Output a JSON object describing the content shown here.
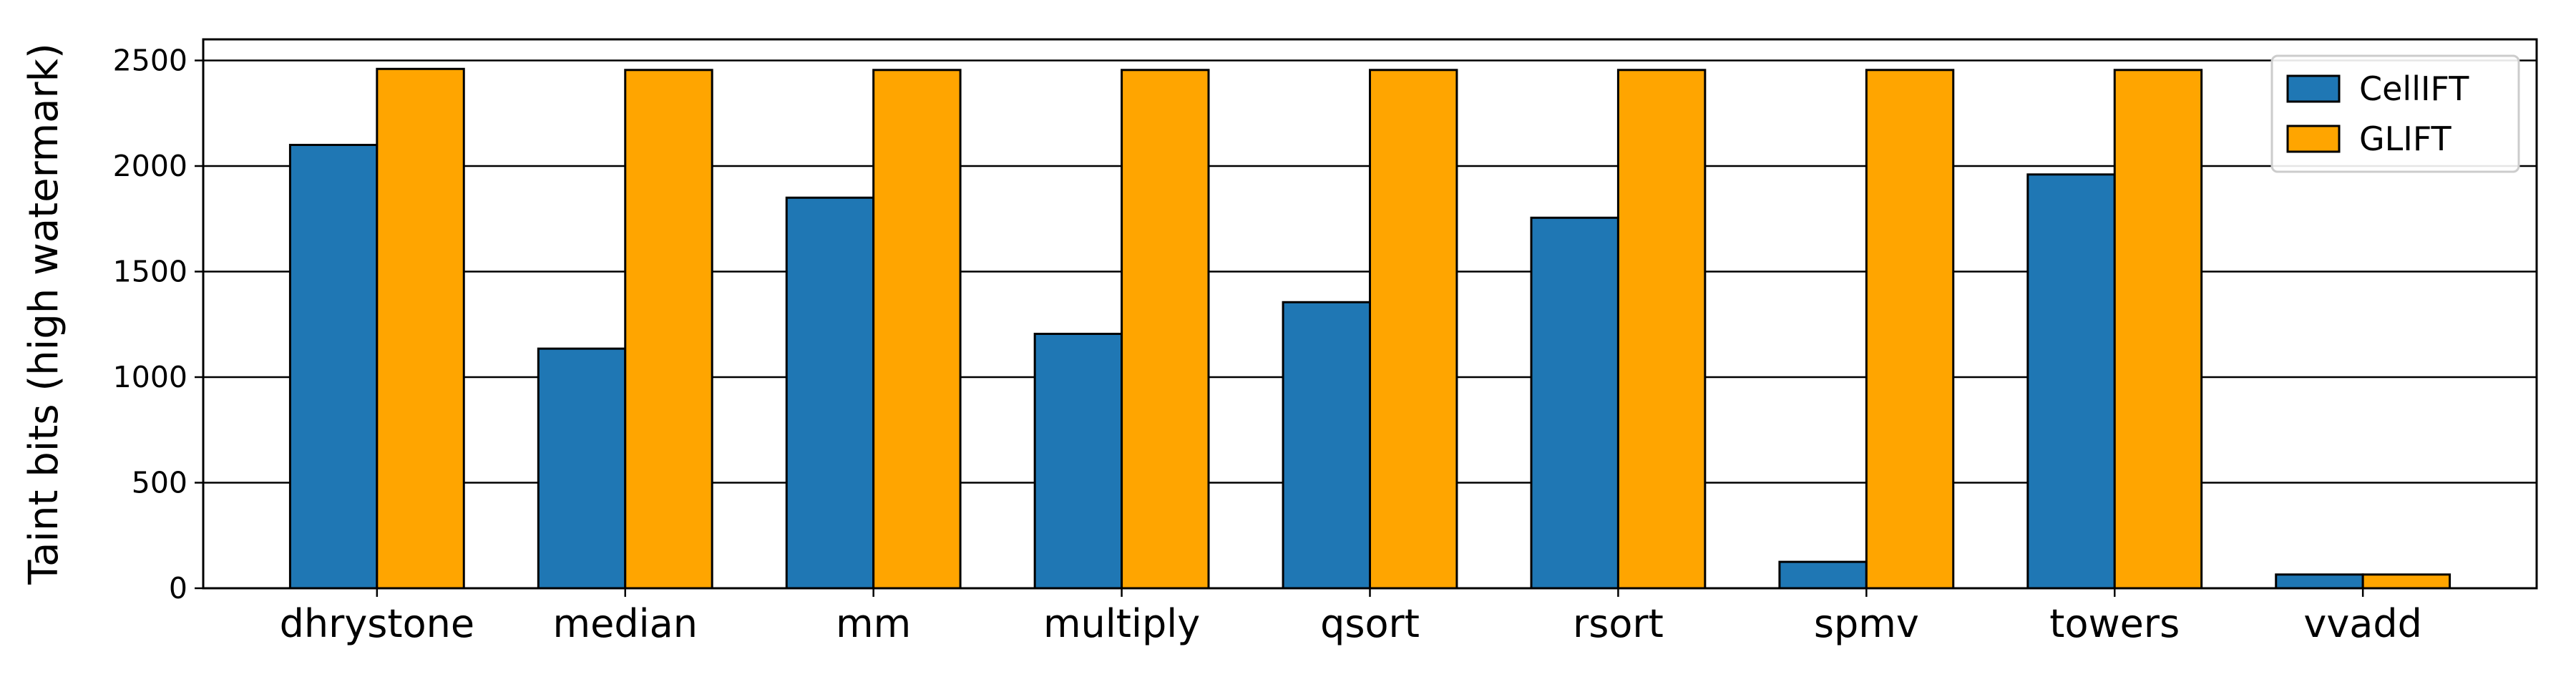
{
  "chart_data": {
    "type": "bar",
    "title": "",
    "xlabel": "",
    "ylabel": "Taint bits (high watermark)",
    "categories": [
      "dhrystone",
      "median",
      "mm",
      "multiply",
      "qsort",
      "rsort",
      "spmv",
      "towers",
      "vvadd"
    ],
    "series": [
      {
        "name": "CellIFT",
        "color": "#1f77b4",
        "values": [
          2100,
          1135,
          1850,
          1205,
          1355,
          1755,
          125,
          1960,
          65
        ]
      },
      {
        "name": "GLIFT",
        "color": "#ffa500",
        "values": [
          2460,
          2455,
          2455,
          2455,
          2455,
          2455,
          2455,
          2455,
          65
        ]
      }
    ],
    "ylim": [
      0,
      2600
    ],
    "yticks": [
      0,
      500,
      1000,
      1500,
      2000,
      2500
    ],
    "grid": "y",
    "legend_position": "top-right"
  }
}
